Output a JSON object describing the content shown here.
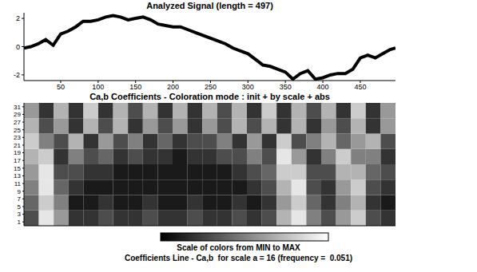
{
  "chart_data": [
    {
      "type": "line",
      "title": "Analyzed Signal  (length = 497)",
      "color": "#000000",
      "x": [
        1,
        10,
        20,
        30,
        40,
        50,
        60,
        70,
        80,
        90,
        100,
        110,
        120,
        130,
        140,
        150,
        160,
        170,
        180,
        190,
        200,
        210,
        220,
        230,
        240,
        250,
        260,
        270,
        280,
        290,
        300,
        310,
        320,
        330,
        340,
        350,
        360,
        370,
        380,
        390,
        400,
        410,
        420,
        430,
        440,
        450,
        460,
        470,
        480,
        490,
        497
      ],
      "values": [
        -0.1,
        0.0,
        0.2,
        0.5,
        0.1,
        0.9,
        1.1,
        1.4,
        1.8,
        1.8,
        1.9,
        2.1,
        2.2,
        2.1,
        1.9,
        2.0,
        2.1,
        1.9,
        1.6,
        1.5,
        1.4,
        1.4,
        1.2,
        1.0,
        0.8,
        0.6,
        0.4,
        0.2,
        -0.1,
        -0.3,
        -0.5,
        -0.9,
        -1.3,
        -1.4,
        -1.6,
        -1.8,
        -2.3,
        -1.9,
        -1.7,
        -2.3,
        -2.2,
        -2.0,
        -1.9,
        -1.9,
        -1.6,
        -0.8,
        -0.6,
        -0.8,
        -0.5,
        -0.2,
        -0.1
      ],
      "xlim": [
        1,
        497
      ],
      "xticks": [
        50,
        100,
        150,
        200,
        250,
        300,
        350,
        400,
        450
      ],
      "ylim": [
        -2.4,
        2.4
      ],
      "yticks": [
        -2,
        0,
        2
      ]
    },
    {
      "type": "heatmap",
      "title": "Ca,b Coefficients  - Coloration mode : init + by scale + abs",
      "xlim": [
        1,
        497
      ],
      "ylim": [
        0,
        32
      ],
      "yticks": [
        1,
        3,
        5,
        7,
        9,
        11,
        13,
        15,
        17,
        19,
        21,
        23,
        25,
        27,
        29,
        31
      ],
      "tick_labels": "y",
      "cells": [
        [
          3,
          9,
          6,
          2,
          2,
          3,
          2,
          2,
          3,
          2,
          2,
          3,
          2,
          2,
          3,
          2,
          3,
          7,
          9,
          5,
          3,
          6,
          8,
          3,
          2
        ],
        [
          4,
          8,
          5,
          1,
          1,
          2,
          1,
          1,
          2,
          1,
          1,
          2,
          1,
          1,
          2,
          1,
          2,
          6,
          8,
          4,
          2,
          5,
          7,
          2,
          1
        ],
        [
          5,
          9,
          4,
          2,
          1,
          1,
          1,
          1,
          1,
          1,
          1,
          1,
          1,
          1,
          1,
          2,
          3,
          7,
          9,
          3,
          2,
          6,
          8,
          3,
          2
        ],
        [
          6,
          9,
          3,
          3,
          2,
          2,
          1,
          1,
          1,
          1,
          1,
          1,
          1,
          1,
          2,
          3,
          4,
          8,
          8,
          3,
          3,
          7,
          7,
          4,
          3
        ],
        [
          7,
          8,
          2,
          5,
          3,
          4,
          2,
          3,
          2,
          2,
          1,
          2,
          2,
          3,
          3,
          5,
          3,
          9,
          6,
          2,
          5,
          8,
          5,
          5,
          2
        ],
        [
          8,
          5,
          3,
          7,
          2,
          6,
          3,
          5,
          2,
          4,
          2,
          3,
          3,
          5,
          2,
          6,
          2,
          8,
          3,
          5,
          7,
          4,
          6,
          7,
          3
        ],
        [
          7,
          3,
          6,
          2,
          7,
          3,
          7,
          2,
          6,
          3,
          6,
          2,
          6,
          3,
          7,
          3,
          7,
          2,
          7,
          2,
          6,
          3,
          7,
          2,
          6
        ],
        [
          6,
          2,
          7,
          2,
          8,
          2,
          7,
          3,
          7,
          2,
          7,
          2,
          7,
          3,
          7,
          2,
          8,
          2,
          7,
          3,
          7,
          2,
          8,
          2,
          6
        ]
      ],
      "colorbar": {
        "label": "Scale of colors from MIN to MAX",
        "range": [
          0,
          10
        ]
      },
      "annotations": [
        "Coefficients Line - Ca,b  for scale a = 16 (frequency =  0.051)"
      ]
    }
  ]
}
